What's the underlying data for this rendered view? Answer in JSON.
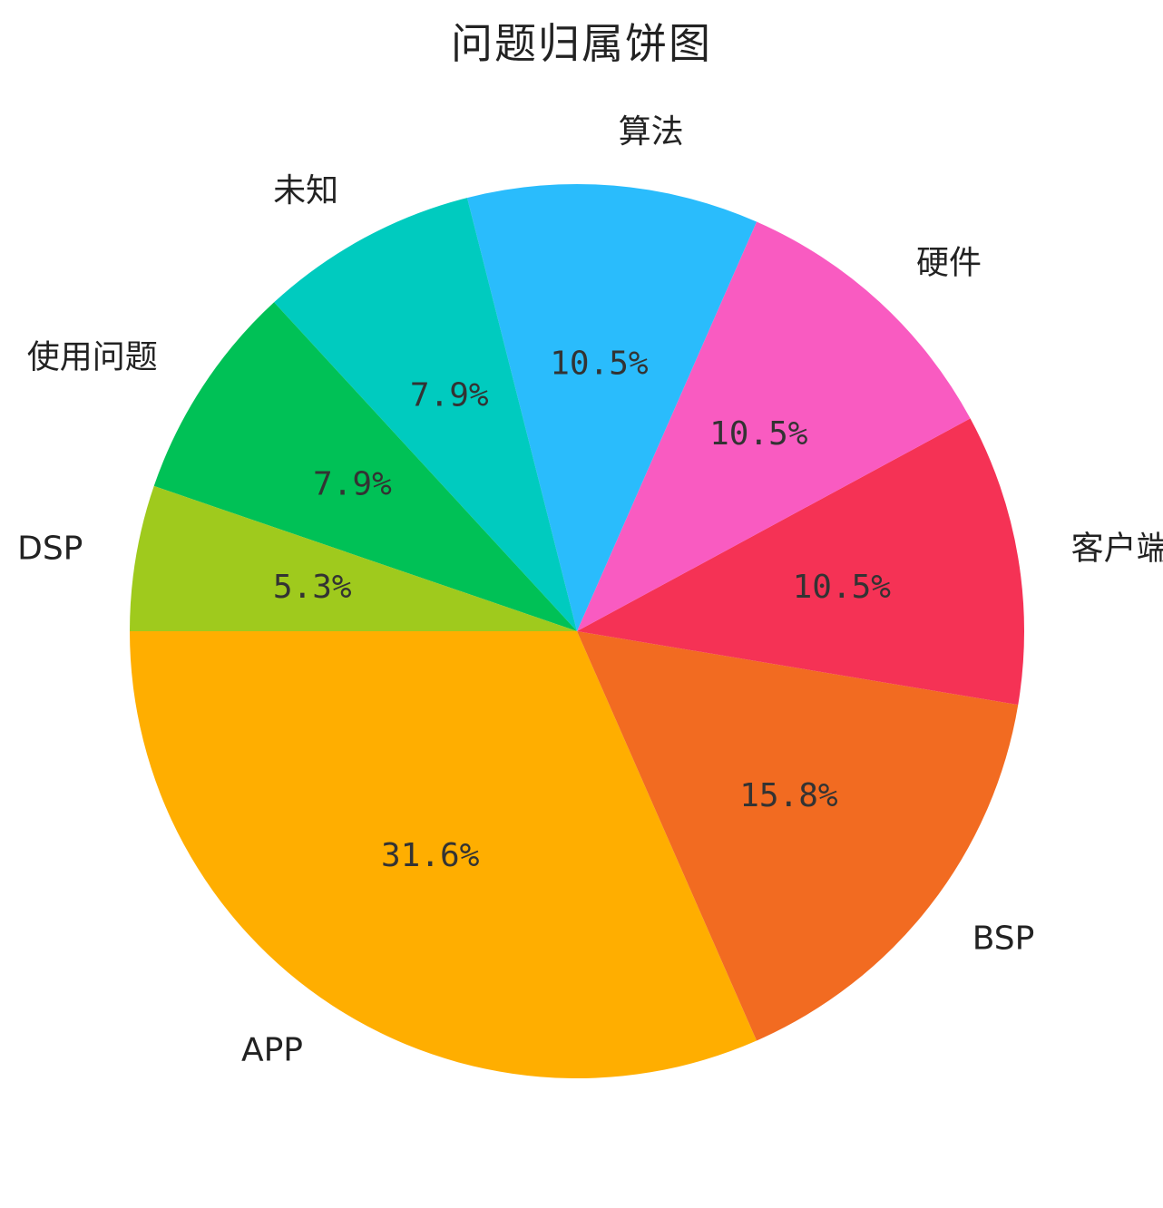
{
  "chart_data": {
    "type": "pie",
    "title": "问题归属饼图",
    "start_angle_deg": 180,
    "direction": "counterclockwise",
    "slices": [
      {
        "label": "APP",
        "pct_text": "31.6%",
        "value": 12,
        "color": "#FFAE00"
      },
      {
        "label": "BSP",
        "pct_text": "15.8%",
        "value": 6,
        "color": "#F26B21"
      },
      {
        "label": "客户端",
        "pct_text": "10.5%",
        "value": 4,
        "color": "#F53255"
      },
      {
        "label": "硬件",
        "pct_text": "10.5%",
        "value": 4,
        "color": "#F95BC1"
      },
      {
        "label": "算法",
        "pct_text": "10.5%",
        "value": 4,
        "color": "#2ABCFC"
      },
      {
        "label": "未知",
        "pct_text": "7.9%",
        "value": 3,
        "color": "#00CBBF"
      },
      {
        "label": "使用问题",
        "pct_text": "7.9%",
        "value": 3,
        "color": "#00C156"
      },
      {
        "label": "DSP",
        "pct_text": "5.3%",
        "value": 2,
        "color": "#9FCA1D"
      }
    ]
  }
}
